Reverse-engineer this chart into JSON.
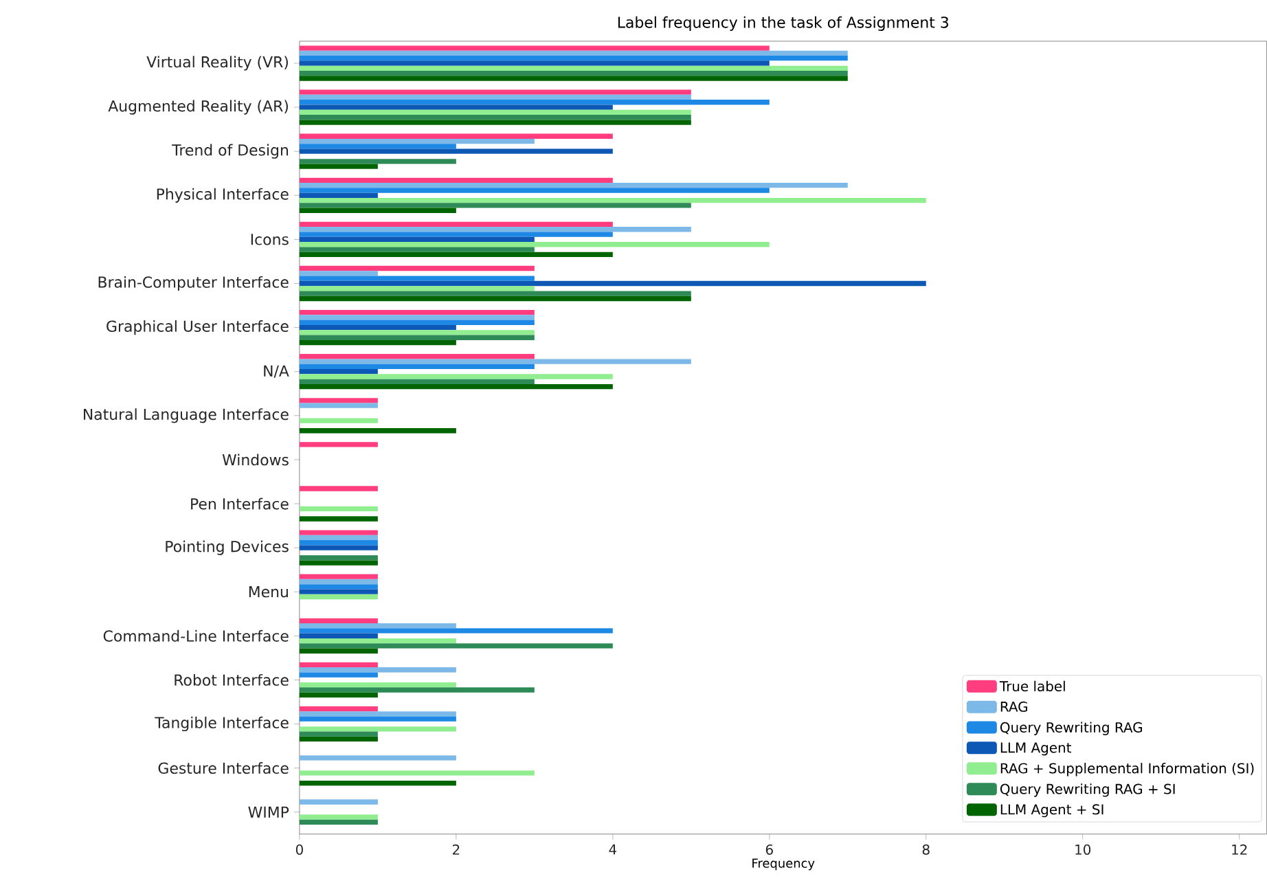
{
  "chart_data": {
    "type": "bar",
    "orientation": "horizontal",
    "title": "Label frequency in the task of Assignment 3",
    "xlabel": "Frequency",
    "categories": [
      "Virtual Reality (VR)",
      "Augmented Reality (AR)",
      "Trend of Design",
      "Physical Interface",
      "Icons",
      "Brain-Computer Interface",
      "Graphical User Interface",
      "N/A",
      "Natural Language Interface",
      "Windows",
      "Pen Interface",
      "Pointing Devices",
      "Menu",
      "Command-Line Interface",
      "Robot Interface",
      "Tangible Interface",
      "Gesture Interface",
      "WIMP"
    ],
    "series": [
      {
        "name": "True label",
        "color": "#ff3d7f",
        "values": [
          6,
          5,
          4,
          4,
          4,
          3,
          3,
          3,
          1,
          1,
          1,
          1,
          1,
          1,
          1,
          1,
          0,
          0
        ]
      },
      {
        "name": "RAG",
        "color": "#7cb8e8",
        "values": [
          7,
          5,
          3,
          7,
          5,
          1,
          3,
          5,
          1,
          0,
          0,
          1,
          1,
          2,
          2,
          2,
          2,
          1
        ]
      },
      {
        "name": "Query Rewriting RAG",
        "color": "#1e88e5",
        "values": [
          7,
          6,
          2,
          6,
          4,
          3,
          3,
          3,
          0,
          0,
          0,
          1,
          1,
          4,
          1,
          2,
          0,
          0
        ]
      },
      {
        "name": "LLM Agent",
        "color": "#0d57b5",
        "values": [
          6,
          4,
          4,
          1,
          3,
          8,
          2,
          1,
          0,
          0,
          0,
          1,
          1,
          1,
          0,
          0,
          0,
          0
        ]
      },
      {
        "name": "RAG + Supplemental Information (SI)",
        "color": "#90ee90",
        "values": [
          7,
          5,
          0,
          8,
          6,
          3,
          3,
          4,
          1,
          0,
          1,
          0,
          1,
          2,
          2,
          2,
          3,
          1
        ]
      },
      {
        "name": "Query Rewriting RAG + SI",
        "color": "#2e8b57",
        "values": [
          7,
          5,
          2,
          5,
          3,
          5,
          3,
          3,
          0,
          0,
          0,
          1,
          0,
          4,
          3,
          1,
          0,
          1
        ]
      },
      {
        "name": "LLM Agent + SI",
        "color": "#006400",
        "values": [
          7,
          5,
          1,
          2,
          4,
          5,
          2,
          4,
          2,
          0,
          1,
          1,
          0,
          1,
          1,
          1,
          2,
          0
        ]
      }
    ],
    "xlim": [
      0,
      12.35
    ],
    "xticks": [
      0,
      2,
      4,
      6,
      8,
      10,
      12
    ],
    "legend": "bottom right"
  }
}
